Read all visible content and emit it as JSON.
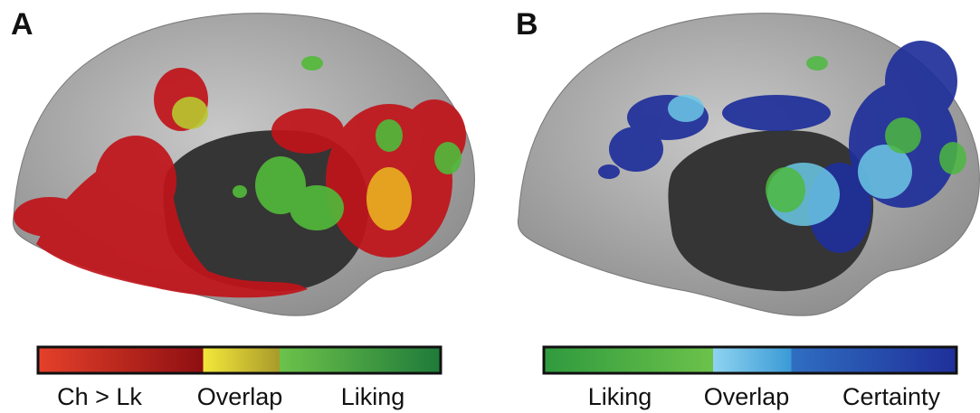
{
  "panels": [
    {
      "label": "A",
      "legend": [
        "Ch > Lk",
        "Overlap",
        "Liking"
      ]
    },
    {
      "label": "B",
      "legend": [
        "Liking",
        "Overlap",
        "Certainty"
      ]
    }
  ]
}
